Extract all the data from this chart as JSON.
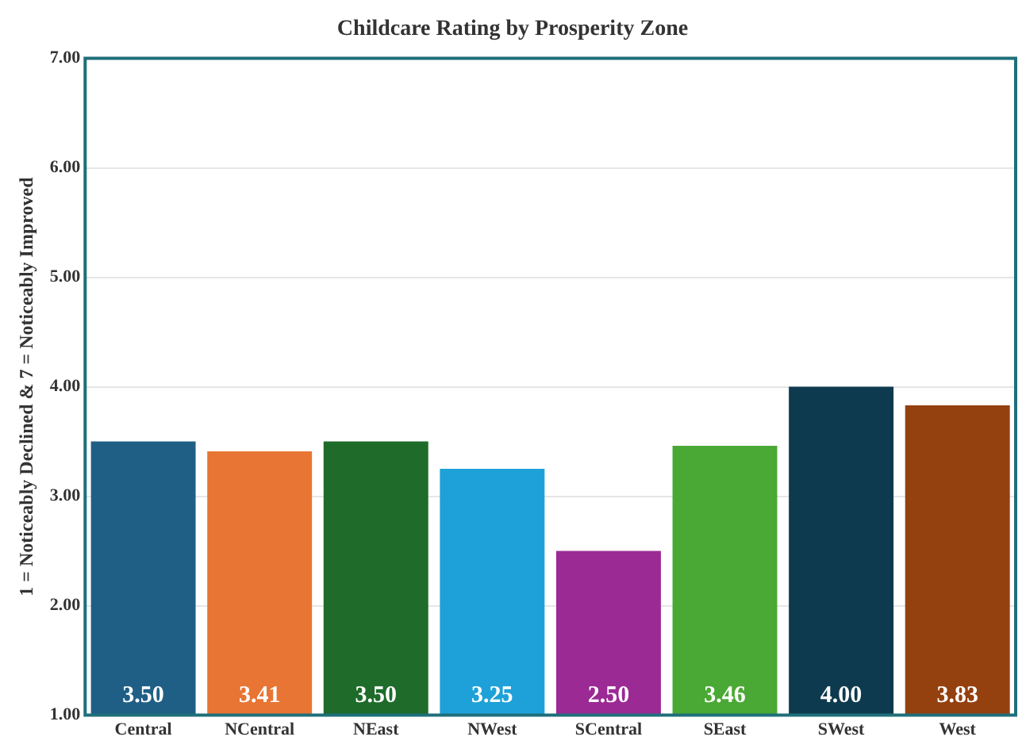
{
  "chart_data": {
    "type": "bar",
    "title": "Childcare Rating by Prosperity Zone",
    "ylabel": "1 = Noticeably Declined & 7 = Noticeably Improved",
    "categories": [
      "Central",
      "NCentral",
      "NEast",
      "NWest",
      "SCentral",
      "SEast",
      "SWest",
      "West"
    ],
    "values": [
      3.5,
      3.41,
      3.5,
      3.25,
      2.5,
      3.46,
      4.0,
      3.83
    ],
    "value_labels": [
      "3.50",
      "3.41",
      "3.50",
      "3.25",
      "2.50",
      "3.46",
      "4.00",
      "3.83"
    ],
    "colors": [
      "#1f5f86",
      "#e87533",
      "#1e6b2a",
      "#1da1d8",
      "#9b2a94",
      "#4aa834",
      "#0e3a4f",
      "#94400f"
    ],
    "ylim": [
      1,
      7
    ],
    "yticks": [
      {
        "value": 1,
        "label": "1.00"
      },
      {
        "value": 2,
        "label": "2.00"
      },
      {
        "value": 3,
        "label": "3.00"
      },
      {
        "value": 4,
        "label": "4.00"
      },
      {
        "value": 5,
        "label": "5.00"
      },
      {
        "value": 6,
        "label": "6.00"
      },
      {
        "value": 7,
        "label": "7.00"
      }
    ],
    "grid": "y",
    "legend": false
  }
}
